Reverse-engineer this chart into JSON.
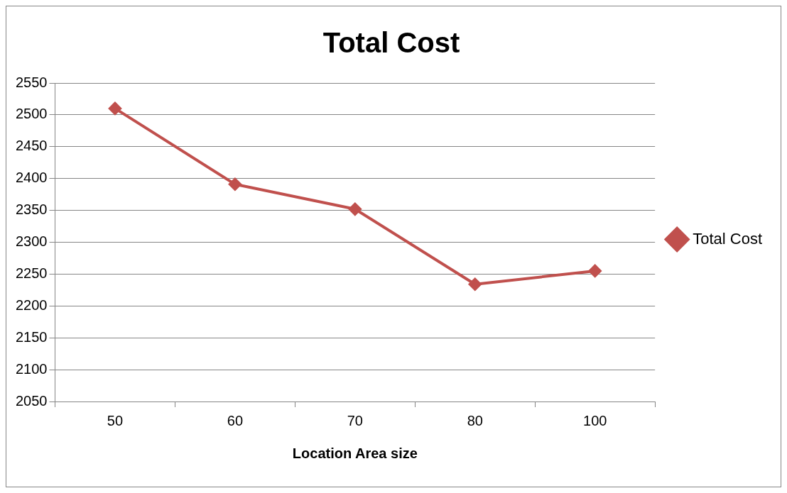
{
  "chart_data": {
    "type": "line",
    "title": "Total Cost",
    "xlabel": "Location Area size",
    "categories": [
      "50",
      "60",
      "70",
      "80",
      "100"
    ],
    "series": [
      {
        "name": "Total Cost",
        "color": "#c0504d",
        "values": [
          2510,
          2391,
          2352,
          2234,
          2255
        ]
      }
    ],
    "ylim": [
      2050,
      2550
    ],
    "yticks": [
      2050,
      2100,
      2150,
      2200,
      2250,
      2300,
      2350,
      2400,
      2450,
      2500,
      2550
    ],
    "grid": "y",
    "legend": "right",
    "marker": "diamond",
    "line_style": "solid"
  }
}
